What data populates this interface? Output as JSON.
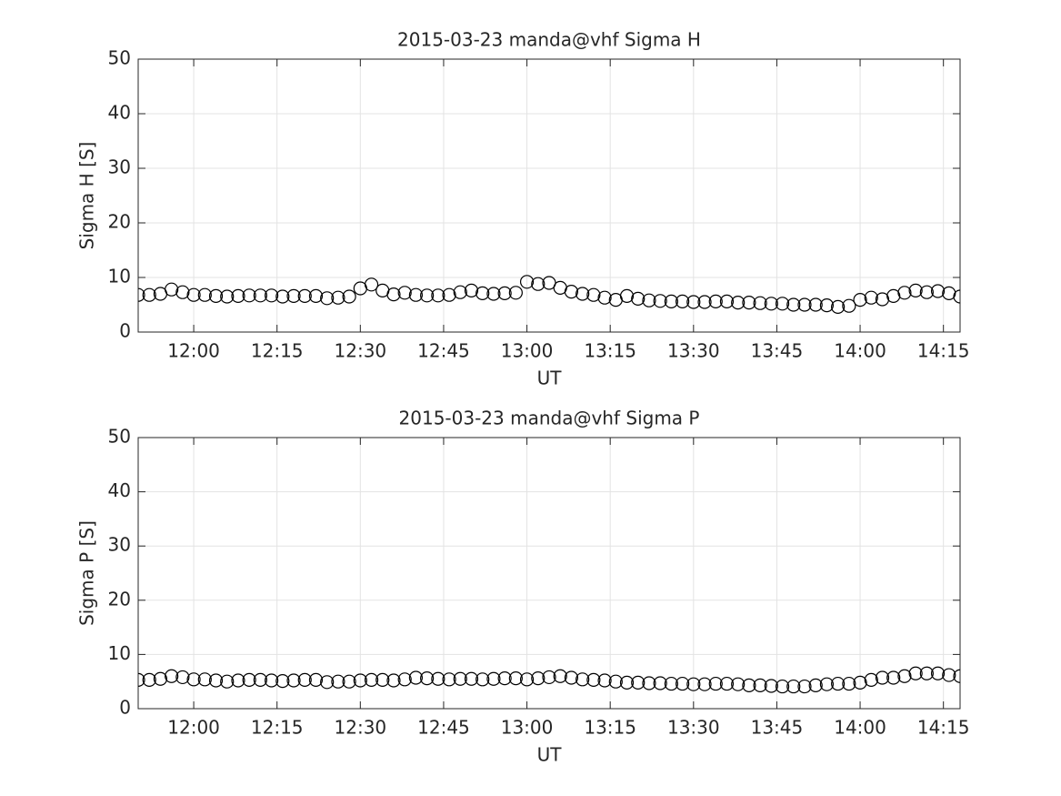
{
  "chart_data": [
    {
      "type": "scatter",
      "title": "2015-03-23  manda@vhf Sigma H",
      "xlabel": "UT",
      "ylabel": "Sigma H [S]",
      "marker": "circle",
      "color": "#000000",
      "grid": true,
      "xlim": [
        "11:50",
        "14:18"
      ],
      "xticks": [
        "12:00",
        "12:15",
        "12:30",
        "12:45",
        "13:00",
        "13:15",
        "13:30",
        "13:45",
        "14:00",
        "14:15"
      ],
      "ylim": [
        0,
        50
      ],
      "yticks": [
        0,
        10,
        20,
        30,
        40,
        50
      ],
      "x": [
        "11:50",
        "11:52",
        "11:54",
        "11:56",
        "11:58",
        "12:00",
        "12:02",
        "12:04",
        "12:06",
        "12:08",
        "12:10",
        "12:12",
        "12:14",
        "12:16",
        "12:18",
        "12:20",
        "12:22",
        "12:24",
        "12:26",
        "12:28",
        "12:30",
        "12:32",
        "12:34",
        "12:36",
        "12:38",
        "12:40",
        "12:42",
        "12:44",
        "12:46",
        "12:48",
        "12:50",
        "12:52",
        "12:54",
        "12:56",
        "12:58",
        "13:00",
        "13:02",
        "13:04",
        "13:06",
        "13:08",
        "13:10",
        "13:12",
        "13:14",
        "13:16",
        "13:18",
        "13:20",
        "13:22",
        "13:24",
        "13:26",
        "13:28",
        "13:30",
        "13:32",
        "13:34",
        "13:36",
        "13:38",
        "13:40",
        "13:42",
        "13:44",
        "13:46",
        "13:48",
        "13:50",
        "13:52",
        "13:54",
        "13:56",
        "13:58",
        "14:00",
        "14:02",
        "14:04",
        "14:06",
        "14:08",
        "14:10",
        "14:12",
        "14:14",
        "14:16",
        "14:18"
      ],
      "values": [
        6.8,
        6.8,
        7.0,
        7.8,
        7.3,
        6.8,
        6.8,
        6.6,
        6.5,
        6.6,
        6.7,
        6.7,
        6.7,
        6.5,
        6.6,
        6.6,
        6.6,
        6.2,
        6.3,
        6.5,
        8.0,
        8.7,
        7.6,
        6.9,
        7.2,
        6.8,
        6.7,
        6.7,
        6.8,
        7.3,
        7.6,
        7.1,
        7.0,
        7.1,
        7.2,
        9.2,
        8.8,
        9.0,
        8.1,
        7.4,
        7.0,
        6.8,
        6.3,
        5.9,
        6.6,
        6.1,
        5.8,
        5.7,
        5.6,
        5.6,
        5.5,
        5.5,
        5.6,
        5.6,
        5.4,
        5.4,
        5.3,
        5.2,
        5.2,
        5.0,
        5.0,
        5.0,
        4.9,
        4.6,
        4.8,
        5.9,
        6.3,
        6.0,
        6.6,
        7.2,
        7.6,
        7.3,
        7.5,
        7.1,
        6.5
      ]
    },
    {
      "type": "scatter",
      "title": "2015-03-23  manda@vhf Sigma P",
      "xlabel": "UT",
      "ylabel": "Sigma P [S]",
      "marker": "circle",
      "color": "#000000",
      "grid": true,
      "xlim": [
        "11:50",
        "14:18"
      ],
      "xticks": [
        "12:00",
        "12:15",
        "12:30",
        "12:45",
        "13:00",
        "13:15",
        "13:30",
        "13:45",
        "14:00",
        "14:15"
      ],
      "ylim": [
        0,
        50
      ],
      "yticks": [
        0,
        10,
        20,
        30,
        40,
        50
      ],
      "x": [
        "11:50",
        "11:52",
        "11:54",
        "11:56",
        "11:58",
        "12:00",
        "12:02",
        "12:04",
        "12:06",
        "12:08",
        "12:10",
        "12:12",
        "12:14",
        "12:16",
        "12:18",
        "12:20",
        "12:22",
        "12:24",
        "12:26",
        "12:28",
        "12:30",
        "12:32",
        "12:34",
        "12:36",
        "12:38",
        "12:40",
        "12:42",
        "12:44",
        "12:46",
        "12:48",
        "12:50",
        "12:52",
        "12:54",
        "12:56",
        "12:58",
        "13:00",
        "13:02",
        "13:04",
        "13:06",
        "13:08",
        "13:10",
        "13:12",
        "13:14",
        "13:16",
        "13:18",
        "13:20",
        "13:22",
        "13:24",
        "13:26",
        "13:28",
        "13:30",
        "13:32",
        "13:34",
        "13:36",
        "13:38",
        "13:40",
        "13:42",
        "13:44",
        "13:46",
        "13:48",
        "13:50",
        "13:52",
        "13:54",
        "13:56",
        "13:58",
        "14:00",
        "14:02",
        "14:04",
        "14:06",
        "14:08",
        "14:10",
        "14:12",
        "14:14",
        "14:16",
        "14:18"
      ],
      "values": [
        5.3,
        5.3,
        5.5,
        6.0,
        5.8,
        5.4,
        5.4,
        5.2,
        5.0,
        5.2,
        5.3,
        5.3,
        5.2,
        5.1,
        5.2,
        5.3,
        5.3,
        4.9,
        5.0,
        5.0,
        5.2,
        5.3,
        5.3,
        5.2,
        5.4,
        5.7,
        5.6,
        5.5,
        5.4,
        5.5,
        5.5,
        5.4,
        5.5,
        5.6,
        5.6,
        5.4,
        5.6,
        5.8,
        6.0,
        5.7,
        5.4,
        5.3,
        5.2,
        5.0,
        4.8,
        4.8,
        4.7,
        4.7,
        4.6,
        4.6,
        4.5,
        4.5,
        4.6,
        4.6,
        4.5,
        4.3,
        4.3,
        4.2,
        4.1,
        4.1,
        4.1,
        4.3,
        4.5,
        4.6,
        4.6,
        4.8,
        5.3,
        5.7,
        5.7,
        6.0,
        6.5,
        6.5,
        6.5,
        6.2,
        6.0
      ]
    }
  ]
}
